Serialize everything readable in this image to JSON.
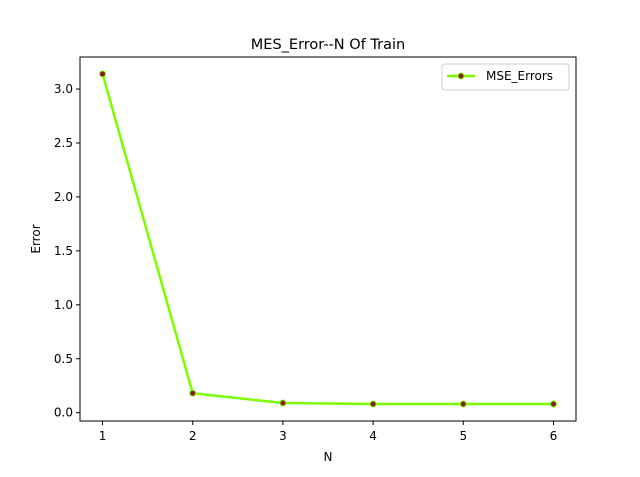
{
  "chart_data": {
    "type": "line",
    "title": "MES_Error--N Of Train",
    "xlabel": "N",
    "ylabel": "Error",
    "x": [
      1,
      2,
      3,
      4,
      5,
      6
    ],
    "series": [
      {
        "name": "MSE_Errors",
        "values": [
          3.14,
          0.18,
          0.09,
          0.08,
          0.08,
          0.08
        ],
        "line_color": "#7cfc00",
        "marker_color": "#8b1a1a"
      }
    ],
    "x_ticks": [
      1,
      2,
      3,
      4,
      5,
      6
    ],
    "x_tick_labels": [
      "1",
      "2",
      "3",
      "4",
      "5",
      "6"
    ],
    "y_ticks": [
      0.0,
      0.5,
      1.0,
      1.5,
      2.0,
      2.5,
      3.0
    ],
    "y_tick_labels": [
      "0.0",
      "0.5",
      "1.0",
      "1.5",
      "2.0",
      "2.5",
      "3.0"
    ],
    "xlim": [
      0.75,
      6.25
    ],
    "ylim": [
      -0.077,
      3.297
    ],
    "grid": false,
    "legend_position": "upper right"
  }
}
